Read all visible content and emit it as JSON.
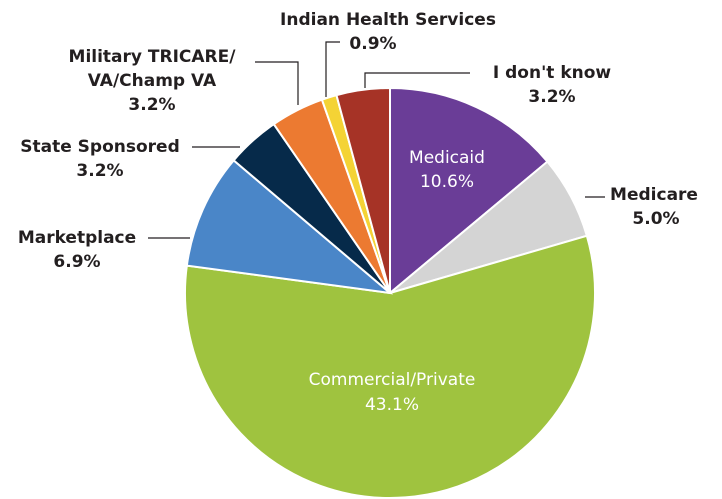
{
  "chart_data": {
    "type": "pie",
    "categories": [
      "Medicaid",
      "Medicare",
      "Commercial/Private",
      "Marketplace",
      "State Sponsored",
      "Military TRICARE/\nVA/Champ VA",
      "Indian Health Services",
      "I don't know"
    ],
    "values": [
      10.6,
      5.0,
      43.1,
      6.9,
      3.2,
      3.2,
      0.9,
      3.2
    ],
    "value_labels": [
      "10.6%",
      "5.0%",
      "43.1%",
      "6.9%",
      "3.2%",
      "3.2%",
      "0.9%",
      "3.2%"
    ],
    "colors": [
      "#6a3d97",
      "#d4d4d4",
      "#9fc33f",
      "#4a86c8",
      "#062a4a",
      "#ec7a31",
      "#f4d335",
      "#a63326"
    ]
  }
}
